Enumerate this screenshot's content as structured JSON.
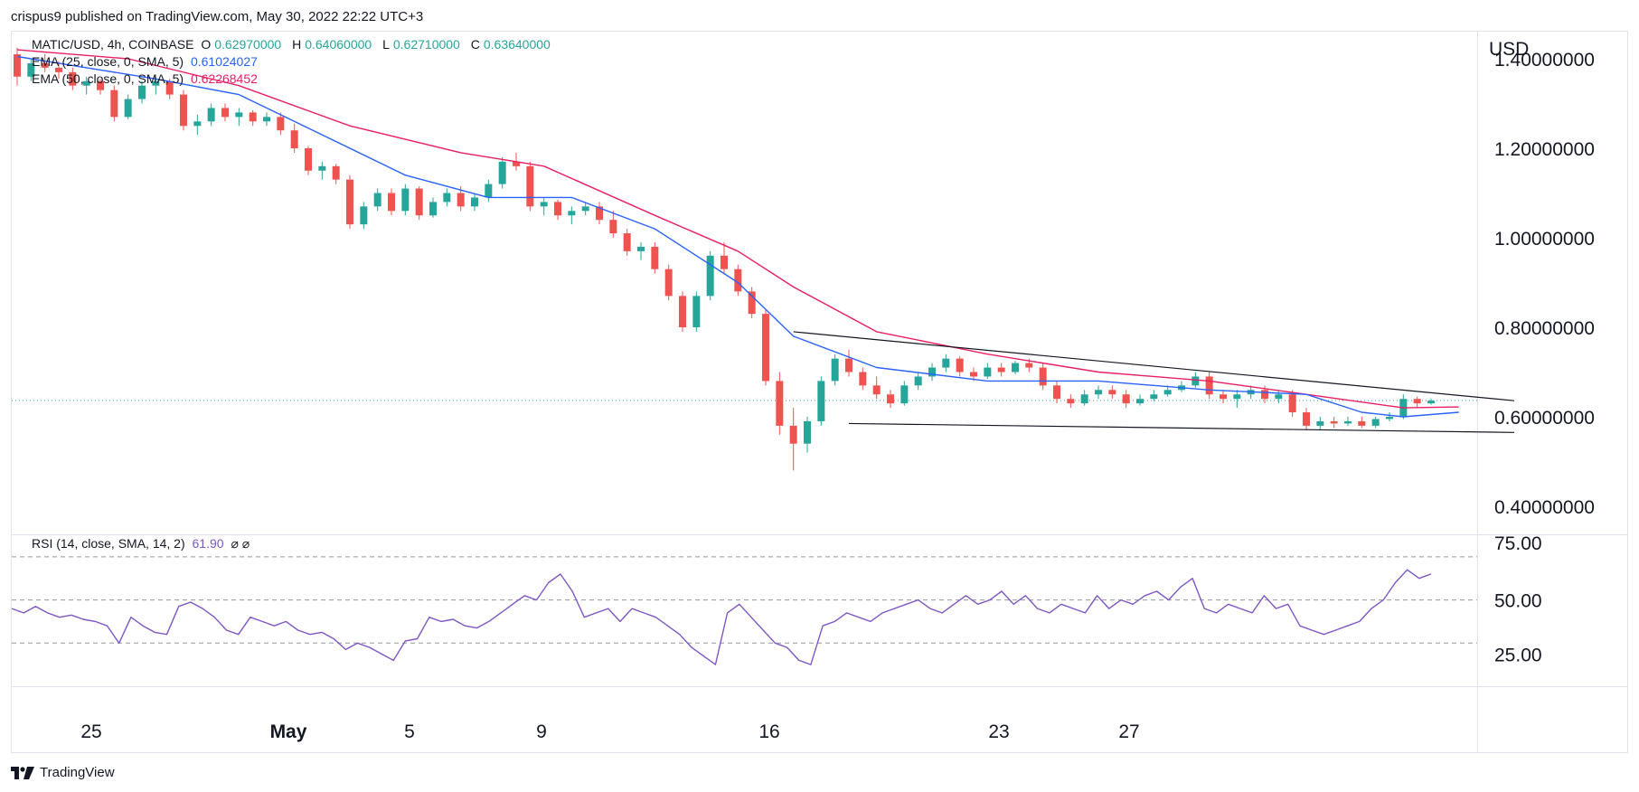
{
  "header": {
    "publisher_text": "crispus9 published on TradingView.com, May 30, 2022 22:22 UTC+3"
  },
  "legend": {
    "symbol": "MATIC/USD, 4h, COINBASE",
    "open_label": "O",
    "open": "0.62970000",
    "high_label": "H",
    "high": "0.64060000",
    "low_label": "L",
    "low": "0.62710000",
    "close_label": "C",
    "close": "0.63640000",
    "ema25_label": "EMA (25, close, 0, SMA, 5)",
    "ema25_value": "0.61024027",
    "ema50_label": "EMA (50, close, 0, SMA, 5)",
    "ema50_value": "0.62268452",
    "rsi_label": "RSI (14, close, SMA, 14, 2)",
    "rsi_value": "61.90",
    "rsi_extra": "⌀ ⌀"
  },
  "footer": {
    "brand": "TradingView"
  },
  "colors": {
    "up": "#26a69a",
    "down": "#ef5350",
    "ema25": "#2962ff",
    "ema50": "#e91e63",
    "rsi": "#7e57c2",
    "grid_dash": "#9598a1",
    "trend": "#131722",
    "price_line": "#26a69a"
  },
  "chart_data": [
    {
      "type": "candlestick",
      "title": "MATIC/USD, 4h, COINBASE",
      "ylabel": "USD",
      "y_ticks": [
        "1.40000000",
        "1.20000000",
        "1.00000000",
        "0.80000000",
        "0.60000000",
        "0.40000000"
      ],
      "ylim": [
        0.4,
        1.45
      ],
      "x_ticks": [
        "25",
        "May",
        "5",
        "9",
        "16",
        "23",
        "27"
      ],
      "last_price": 0.6364,
      "candles": [
        [
          1.41,
          1.425,
          1.34,
          1.36
        ],
        [
          1.36,
          1.4,
          1.35,
          1.39
        ],
        [
          1.39,
          1.41,
          1.37,
          1.38
        ],
        [
          1.38,
          1.395,
          1.355,
          1.37
        ],
        [
          1.37,
          1.38,
          1.33,
          1.34
        ],
        [
          1.34,
          1.36,
          1.32,
          1.35
        ],
        [
          1.35,
          1.355,
          1.32,
          1.33
        ],
        [
          1.33,
          1.34,
          1.26,
          1.27
        ],
        [
          1.27,
          1.32,
          1.265,
          1.31
        ],
        [
          1.31,
          1.35,
          1.3,
          1.34
        ],
        [
          1.34,
          1.36,
          1.32,
          1.35
        ],
        [
          1.35,
          1.355,
          1.31,
          1.32
        ],
        [
          1.32,
          1.33,
          1.24,
          1.25
        ],
        [
          1.25,
          1.275,
          1.23,
          1.26
        ],
        [
          1.26,
          1.3,
          1.25,
          1.29
        ],
        [
          1.29,
          1.3,
          1.26,
          1.27
        ],
        [
          1.27,
          1.29,
          1.25,
          1.28
        ],
        [
          1.28,
          1.285,
          1.25,
          1.26
        ],
        [
          1.26,
          1.28,
          1.25,
          1.27
        ],
        [
          1.27,
          1.28,
          1.23,
          1.24
        ],
        [
          1.24,
          1.255,
          1.19,
          1.2
        ],
        [
          1.2,
          1.205,
          1.14,
          1.15
        ],
        [
          1.15,
          1.17,
          1.13,
          1.16
        ],
        [
          1.16,
          1.165,
          1.12,
          1.13
        ],
        [
          1.13,
          1.14,
          1.02,
          1.03
        ],
        [
          1.03,
          1.08,
          1.02,
          1.07
        ],
        [
          1.07,
          1.11,
          1.06,
          1.1
        ],
        [
          1.1,
          1.11,
          1.05,
          1.06
        ],
        [
          1.06,
          1.12,
          1.05,
          1.11
        ],
        [
          1.11,
          1.115,
          1.04,
          1.05
        ],
        [
          1.05,
          1.09,
          1.045,
          1.08
        ],
        [
          1.08,
          1.11,
          1.07,
          1.1
        ],
        [
          1.1,
          1.115,
          1.06,
          1.07
        ],
        [
          1.07,
          1.1,
          1.06,
          1.09
        ],
        [
          1.09,
          1.13,
          1.08,
          1.12
        ],
        [
          1.12,
          1.18,
          1.11,
          1.17
        ],
        [
          1.17,
          1.19,
          1.15,
          1.16
        ],
        [
          1.16,
          1.17,
          1.06,
          1.07
        ],
        [
          1.07,
          1.09,
          1.05,
          1.08
        ],
        [
          1.08,
          1.085,
          1.04,
          1.05
        ],
        [
          1.05,
          1.07,
          1.03,
          1.06
        ],
        [
          1.06,
          1.08,
          1.05,
          1.07
        ],
        [
          1.07,
          1.08,
          1.03,
          1.04
        ],
        [
          1.04,
          1.06,
          1.0,
          1.01
        ],
        [
          1.01,
          1.02,
          0.96,
          0.97
        ],
        [
          0.97,
          0.99,
          0.95,
          0.98
        ],
        [
          0.98,
          0.99,
          0.92,
          0.93
        ],
        [
          0.93,
          0.94,
          0.86,
          0.87
        ],
        [
          0.87,
          0.88,
          0.79,
          0.8
        ],
        [
          0.8,
          0.88,
          0.79,
          0.87
        ],
        [
          0.87,
          0.97,
          0.86,
          0.96
        ],
        [
          0.96,
          0.99,
          0.92,
          0.93
        ],
        [
          0.93,
          0.94,
          0.87,
          0.88
        ],
        [
          0.88,
          0.89,
          0.82,
          0.83
        ],
        [
          0.83,
          0.84,
          0.67,
          0.68
        ],
        [
          0.68,
          0.7,
          0.56,
          0.58
        ],
        [
          0.58,
          0.62,
          0.48,
          0.54
        ],
        [
          0.54,
          0.6,
          0.52,
          0.59
        ],
        [
          0.59,
          0.69,
          0.58,
          0.68
        ],
        [
          0.68,
          0.74,
          0.67,
          0.73
        ],
        [
          0.73,
          0.75,
          0.69,
          0.7
        ],
        [
          0.7,
          0.71,
          0.66,
          0.67
        ],
        [
          0.67,
          0.69,
          0.64,
          0.65
        ],
        [
          0.65,
          0.66,
          0.62,
          0.63
        ],
        [
          0.63,
          0.68,
          0.625,
          0.67
        ],
        [
          0.67,
          0.7,
          0.66,
          0.69
        ],
        [
          0.69,
          0.72,
          0.68,
          0.71
        ],
        [
          0.71,
          0.74,
          0.7,
          0.73
        ],
        [
          0.73,
          0.735,
          0.69,
          0.7
        ],
        [
          0.7,
          0.71,
          0.68,
          0.69
        ],
        [
          0.69,
          0.72,
          0.685,
          0.71
        ],
        [
          0.71,
          0.72,
          0.69,
          0.7
        ],
        [
          0.7,
          0.725,
          0.695,
          0.72
        ],
        [
          0.72,
          0.73,
          0.7,
          0.71
        ],
        [
          0.71,
          0.72,
          0.66,
          0.67
        ],
        [
          0.67,
          0.68,
          0.63,
          0.64
        ],
        [
          0.64,
          0.65,
          0.62,
          0.63
        ],
        [
          0.63,
          0.66,
          0.625,
          0.65
        ],
        [
          0.65,
          0.67,
          0.64,
          0.66
        ],
        [
          0.66,
          0.67,
          0.64,
          0.65
        ],
        [
          0.65,
          0.66,
          0.62,
          0.63
        ],
        [
          0.63,
          0.65,
          0.625,
          0.64
        ],
        [
          0.64,
          0.66,
          0.635,
          0.65
        ],
        [
          0.65,
          0.67,
          0.645,
          0.66
        ],
        [
          0.66,
          0.68,
          0.655,
          0.67
        ],
        [
          0.67,
          0.7,
          0.665,
          0.69
        ],
        [
          0.69,
          0.7,
          0.64,
          0.65
        ],
        [
          0.65,
          0.66,
          0.63,
          0.64
        ],
        [
          0.64,
          0.66,
          0.62,
          0.65
        ],
        [
          0.65,
          0.67,
          0.64,
          0.66
        ],
        [
          0.66,
          0.67,
          0.63,
          0.64
        ],
        [
          0.64,
          0.66,
          0.63,
          0.65
        ],
        [
          0.65,
          0.66,
          0.6,
          0.61
        ],
        [
          0.61,
          0.62,
          0.57,
          0.58
        ],
        [
          0.58,
          0.6,
          0.57,
          0.59
        ],
        [
          0.59,
          0.6,
          0.575,
          0.585
        ],
        [
          0.585,
          0.6,
          0.58,
          0.59
        ],
        [
          0.59,
          0.6,
          0.575,
          0.58
        ],
        [
          0.58,
          0.6,
          0.575,
          0.595
        ],
        [
          0.595,
          0.61,
          0.59,
          0.6
        ],
        [
          0.6,
          0.65,
          0.595,
          0.64
        ],
        [
          0.64,
          0.645,
          0.62,
          0.63
        ],
        [
          0.63,
          0.641,
          0.627,
          0.636
        ]
      ],
      "ema25_points": [
        [
          0,
          1.405
        ],
        [
          5,
          1.38
        ],
        [
          10,
          1.355
        ],
        [
          16,
          1.32
        ],
        [
          22,
          1.23
        ],
        [
          28,
          1.14
        ],
        [
          34,
          1.09
        ],
        [
          40,
          1.09
        ],
        [
          46,
          1.02
        ],
        [
          52,
          0.9
        ],
        [
          56,
          0.78
        ],
        [
          62,
          0.71
        ],
        [
          70,
          0.68
        ],
        [
          78,
          0.68
        ],
        [
          86,
          0.66
        ],
        [
          93,
          0.65
        ],
        [
          97,
          0.61
        ],
        [
          100,
          0.6
        ],
        [
          104,
          0.61
        ]
      ],
      "ema50_points": [
        [
          0,
          1.42
        ],
        [
          8,
          1.4
        ],
        [
          16,
          1.34
        ],
        [
          24,
          1.25
        ],
        [
          32,
          1.19
        ],
        [
          38,
          1.16
        ],
        [
          46,
          1.05
        ],
        [
          52,
          0.97
        ],
        [
          56,
          0.89
        ],
        [
          62,
          0.79
        ],
        [
          70,
          0.74
        ],
        [
          78,
          0.7
        ],
        [
          86,
          0.68
        ],
        [
          93,
          0.65
        ],
        [
          100,
          0.62
        ],
        [
          104,
          0.622
        ]
      ],
      "trendline_upper": [
        [
          56,
          0.79
        ],
        [
          108,
          0.636
        ]
      ],
      "trendline_lower": [
        [
          60,
          0.585
        ],
        [
          108,
          0.565
        ]
      ]
    },
    {
      "type": "line",
      "title": "RSI (14, close, SMA, 14, 2)",
      "y_ticks": [
        "75.00",
        "50.00",
        "25.00"
      ],
      "ylim": [
        10,
        80
      ],
      "bands": [
        70,
        50,
        30
      ],
      "values": [
        46,
        44,
        47,
        44,
        42,
        43,
        41,
        40,
        38,
        30,
        42,
        38,
        35,
        34,
        47,
        49,
        46,
        42,
        36,
        34,
        42,
        40,
        38,
        40,
        36,
        34,
        35,
        32,
        27,
        30,
        28,
        25,
        22,
        31,
        32,
        42,
        40,
        41,
        38,
        37,
        40,
        44,
        48,
        52,
        50,
        58,
        62,
        54,
        42,
        44,
        46,
        40,
        46,
        44,
        42,
        38,
        34,
        28,
        24,
        20,
        44,
        48,
        42,
        36,
        30,
        28,
        22,
        20,
        38,
        40,
        44,
        42,
        40,
        44,
        46,
        48,
        50,
        46,
        44,
        48,
        52,
        48,
        50,
        54,
        48,
        52,
        46,
        44,
        48,
        46,
        44,
        52,
        46,
        50,
        48,
        52,
        54,
        50,
        56,
        60,
        46,
        44,
        48,
        46,
        44,
        52,
        46,
        48,
        38,
        36,
        34,
        36,
        38,
        40,
        46,
        50,
        58,
        64,
        60,
        62
      ]
    }
  ]
}
